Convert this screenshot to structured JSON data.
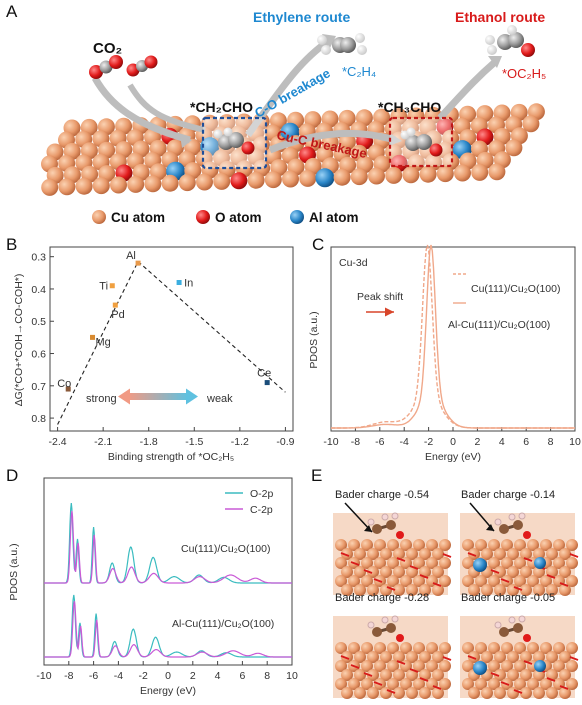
{
  "panel_a": {
    "letter": "A",
    "co2_label": "CO₂",
    "ethylene_route": "Ethylene route",
    "ethanol_route": "Ethanol route",
    "c2h4_label": "*C₂H₄",
    "oc2h5_label": "*OC₂H₅",
    "ch2cho_label": "*CH₂CHO",
    "ch3cho_label": "*CH₃CHO",
    "co_breakage": "C-O breakage",
    "cuc_breakage": "Cu-C breakage",
    "legend": [
      "Cu atom",
      "O atom",
      "Al atom"
    ],
    "colors": {
      "cu": "#e8996a",
      "o": "#e11a1a",
      "al": "#2a86c8",
      "ethylene": "#1e88d0",
      "ethanol": "#d81b1b"
    }
  },
  "panel_b": {
    "letter": "B",
    "chart_data": {
      "type": "scatter",
      "xlabel": "Binding strength of *OC₂H₅",
      "ylabel": "ΔG(*CO+*COH→CO-COH*)",
      "xlim": [
        -2.45,
        -0.85
      ],
      "ylim": [
        0.84,
        0.27
      ],
      "xticks": [
        -2.4,
        -2.1,
        -1.8,
        -1.5,
        -1.2,
        -0.9
      ],
      "yticks": [
        0.3,
        0.4,
        0.5,
        0.6,
        0.7,
        0.8
      ],
      "points": [
        {
          "name": "Al",
          "x": -1.87,
          "y": 0.32,
          "color": "#e8994a"
        },
        {
          "name": "In",
          "x": -1.6,
          "y": 0.38,
          "color": "#3aaee0"
        },
        {
          "name": "Ti",
          "x": -2.04,
          "y": 0.39,
          "color": "#f0a040"
        },
        {
          "name": "Pd",
          "x": -2.02,
          "y": 0.45,
          "color": "#f0a040"
        },
        {
          "name": "Mg",
          "x": -2.17,
          "y": 0.55,
          "color": "#d88a30"
        },
        {
          "name": "Co",
          "x": -2.33,
          "y": 0.71,
          "color": "#8a5a3a"
        },
        {
          "name": "Ce",
          "x": -1.02,
          "y": 0.69,
          "color": "#1a4d7a"
        }
      ],
      "trend_lines": [
        {
          "x": [
            -2.4,
            -1.87
          ],
          "y": [
            0.82,
            0.315
          ]
        },
        {
          "x": [
            -1.87,
            -0.9
          ],
          "y": [
            0.315,
            0.72
          ]
        }
      ],
      "annotations": [
        "strong",
        "weak"
      ]
    }
  },
  "panel_c": {
    "letter": "C",
    "chart_data": {
      "type": "line",
      "title": "Cu-3d",
      "xlabel": "Energy (eV)",
      "ylabel": "PDOS (a.u.)",
      "xlim": [
        -10,
        10
      ],
      "xticks": [
        -10,
        -8,
        -6,
        -4,
        -2,
        0,
        2,
        4,
        6,
        8,
        10
      ],
      "series": [
        {
          "name": "Cu(111)/Cu₂O(100)",
          "style": "dashed",
          "color": "#f0a88a",
          "peak_x": -2.1
        },
        {
          "name": "Al-Cu(111)/Cu₂O(100)",
          "style": "solid",
          "color": "#f0a88a",
          "peak_x": -1.8
        }
      ],
      "annotation": "Peak shift"
    }
  },
  "panel_d": {
    "letter": "D",
    "chart_data": {
      "type": "line",
      "xlabel": "Energy (eV)",
      "ylabel": "PDOS (a.u.)",
      "xlim": [
        -10,
        10
      ],
      "xticks": [
        -10,
        -8,
        -6,
        -4,
        -2,
        0,
        2,
        4,
        6,
        8,
        10
      ],
      "series": [
        {
          "name": "O-2p",
          "color": "#3bbcc0"
        },
        {
          "name": "C-2p",
          "color": "#c95ad6"
        }
      ],
      "labels": [
        "Cu(111)/Cu₂O(100)",
        "Al-Cu(111)/Cu₂O(100)"
      ]
    }
  },
  "panel_e": {
    "letter": "E",
    "bader": [
      "Bader charge -0.54",
      "Bader charge -0.14",
      "Bader charge -0.28",
      "Bader charge -0.05"
    ]
  }
}
